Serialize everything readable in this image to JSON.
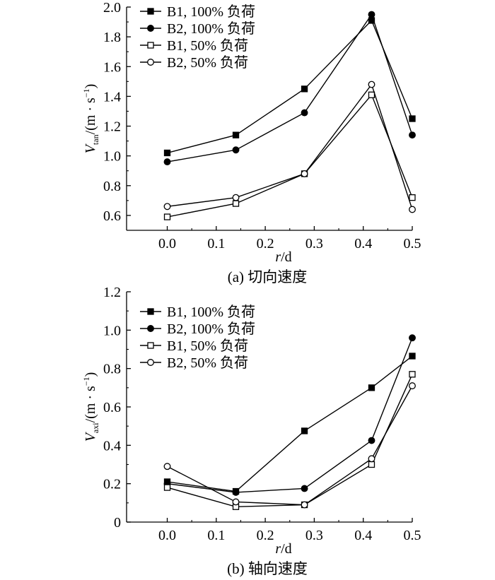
{
  "chart_data": [
    {
      "type": "line",
      "title": "(a) 切向速度",
      "xlabel": {
        "var": "r",
        "rest": "/d"
      },
      "ylabel": {
        "var": "V",
        "sub": "tan",
        "unit": "/(m · s",
        "sup": "−1",
        "close": ")"
      },
      "x": [
        0.0,
        0.14,
        0.28,
        0.417,
        0.5
      ],
      "xlim": [
        -0.083,
        0.5
      ],
      "ylim": [
        0.5,
        2.0
      ],
      "xticks": [
        "0.0",
        "0.1",
        "0.2",
        "0.3",
        "0.4",
        "0.5"
      ],
      "yticks": [
        "0.6",
        "0.8",
        "1.0",
        "1.2",
        "1.4",
        "1.6",
        "1.8",
        "2.0"
      ],
      "legend_position": "top-left",
      "series": [
        {
          "name": "B1, 100% 负荷",
          "marker": "square-filled",
          "values": [
            1.02,
            1.14,
            1.45,
            1.91,
            1.25
          ]
        },
        {
          "name": "B2, 100% 负荷",
          "marker": "circle-filled",
          "values": [
            0.96,
            1.04,
            1.29,
            1.95,
            1.14
          ]
        },
        {
          "name": "B1, 50% 负荷",
          "marker": "square-open",
          "values": [
            0.59,
            0.68,
            0.88,
            1.41,
            0.72
          ]
        },
        {
          "name": "B2, 50% 负荷",
          "marker": "circle-open",
          "values": [
            0.66,
            0.72,
            0.88,
            1.48,
            0.64
          ]
        }
      ]
    },
    {
      "type": "line",
      "title": "(b) 轴向速度",
      "xlabel": {
        "var": "r",
        "rest": "/d"
      },
      "ylabel": {
        "var": "V",
        "sub": "axi",
        "unit": "/(m · s",
        "sup": "−1",
        "close": ")"
      },
      "x": [
        0.0,
        0.14,
        0.28,
        0.417,
        0.5
      ],
      "xlim": [
        -0.083,
        0.5
      ],
      "ylim": [
        0,
        1.2
      ],
      "xticks": [
        "0.0",
        "0.1",
        "0.2",
        "0.3",
        "0.4",
        "0.5"
      ],
      "yticks": [
        "0",
        "0.2",
        "0.4",
        "0.6",
        "0.8",
        "1.0",
        "1.2"
      ],
      "legend_position": "top-left",
      "series": [
        {
          "name": "B1, 100% 负荷",
          "marker": "square-filled",
          "values": [
            0.21,
            0.16,
            0.475,
            0.7,
            0.865
          ]
        },
        {
          "name": "B2, 100% 负荷",
          "marker": "circle-filled",
          "values": [
            0.2,
            0.155,
            0.175,
            0.425,
            0.96
          ]
        },
        {
          "name": "B1, 50% 负荷",
          "marker": "square-open",
          "values": [
            0.18,
            0.08,
            0.09,
            0.3,
            0.77
          ]
        },
        {
          "name": "B2, 50% 负荷",
          "marker": "circle-open",
          "values": [
            0.29,
            0.105,
            0.09,
            0.33,
            0.71
          ]
        }
      ]
    }
  ]
}
